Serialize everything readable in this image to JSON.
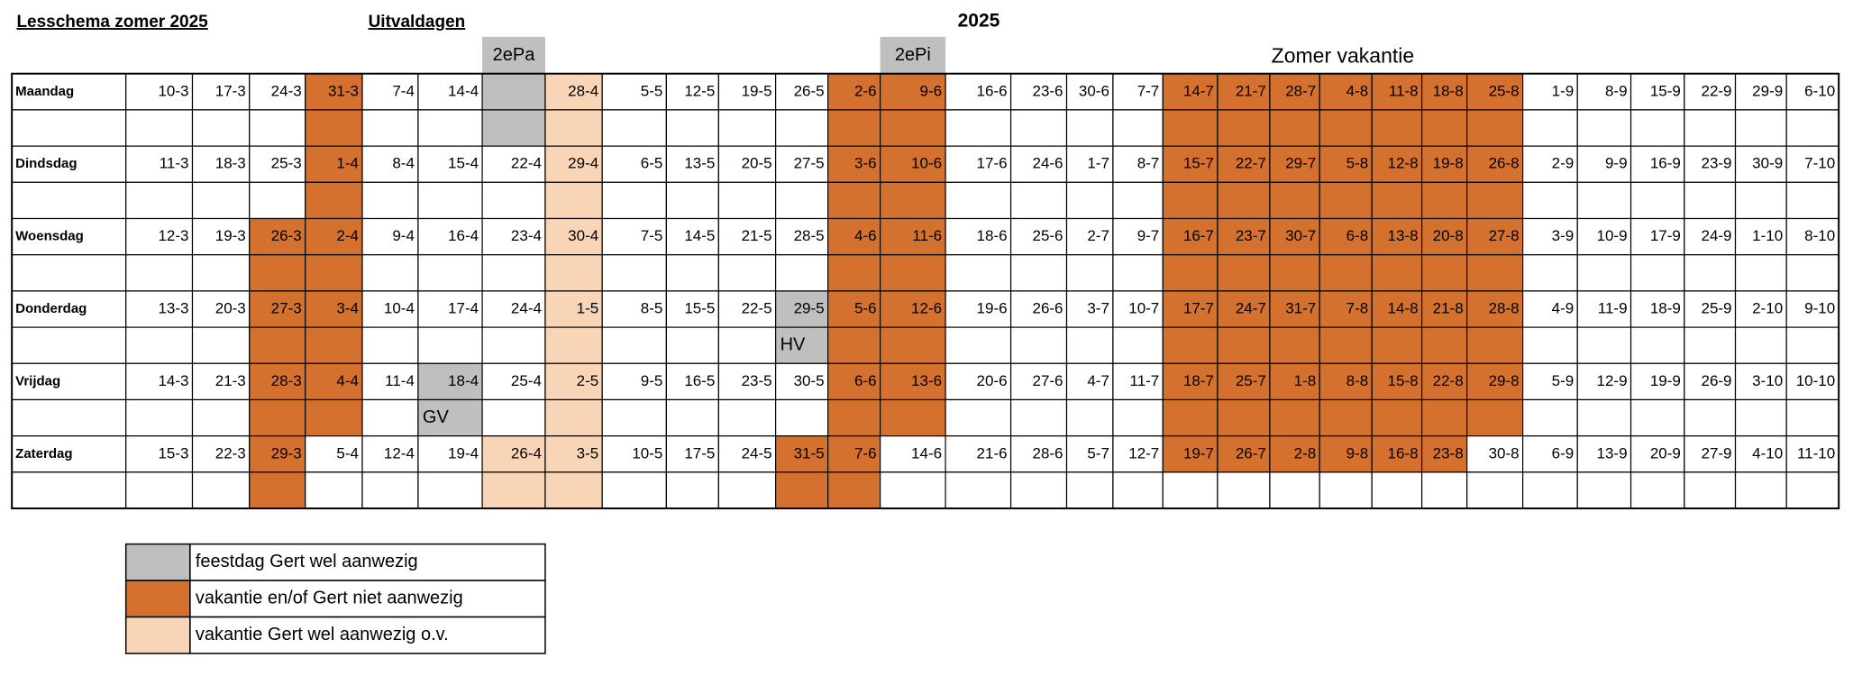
{
  "header": {
    "title": "Lesschema zomer 2025",
    "subtitle": "Uitvaldagen",
    "year": "2025",
    "zomer": "Zomer vakantie",
    "column_notes": [
      {
        "col": 6,
        "text": "2ePa",
        "code": "g"
      },
      {
        "col": 13,
        "text": "2ePi",
        "code": "g"
      }
    ]
  },
  "legend": [
    {
      "code": "g",
      "color": "#bfbfbf",
      "label": "feestdag Gert wel aanwezig"
    },
    {
      "code": "o",
      "color": "#d5712f",
      "label": "vakantie en/of Gert niet aanwezig"
    },
    {
      "code": "p",
      "color": "#f8d5b6",
      "label": "vakantie  Gert wel aanwezig o.v."
    }
  ],
  "days": [
    {
      "name": "Maandag",
      "dates": [
        "10-3",
        "17-3",
        "24-3",
        "31-3",
        "7-4",
        "14-4",
        null,
        "28-4",
        "5-5",
        "12-5",
        "19-5",
        "26-5",
        "2-6",
        "9-6",
        "16-6",
        "23-6",
        "30-6",
        "7-7",
        "14-7",
        "21-7",
        "28-7",
        "4-8",
        "11-8",
        "18-8",
        "25-8",
        "1-9",
        "8-9",
        "15-9",
        "22-9",
        "29-9",
        "6-10"
      ],
      "fill": "...o..gp....oo....ooooooo......",
      "sub_fill": "...o..gp....oo....ooooooo......",
      "notes": []
    },
    {
      "name": "Dindsdag",
      "dates": [
        "11-3",
        "18-3",
        "25-3",
        "1-4",
        "8-4",
        "15-4",
        "22-4",
        "29-4",
        "6-5",
        "13-5",
        "20-5",
        "27-5",
        "3-6",
        "10-6",
        "17-6",
        "24-6",
        "1-7",
        "8-7",
        "15-7",
        "22-7",
        "29-7",
        "5-8",
        "12-8",
        "19-8",
        "26-8",
        "2-9",
        "9-9",
        "16-9",
        "23-9",
        "30-9",
        "7-10"
      ],
      "fill": "...o...p....oo....ooooooo......",
      "sub_fill": "...o...p....oo....ooooooo......",
      "notes": []
    },
    {
      "name": "Woensdag",
      "dates": [
        "12-3",
        "19-3",
        "26-3",
        "2-4",
        "9-4",
        "16-4",
        "23-4",
        "30-4",
        "7-5",
        "14-5",
        "21-5",
        "28-5",
        "4-6",
        "11-6",
        "18-6",
        "25-6",
        "2-7",
        "9-7",
        "16-7",
        "23-7",
        "30-7",
        "6-8",
        "13-8",
        "20-8",
        "27-8",
        "3-9",
        "10-9",
        "17-9",
        "24-9",
        "1-10",
        "8-10"
      ],
      "fill": "..oo...p....oo....ooooooo......",
      "sub_fill": "..oo...p....oo....ooooooo......",
      "notes": []
    },
    {
      "name": "Donderdag",
      "dates": [
        "13-3",
        "20-3",
        "27-3",
        "3-4",
        "10-4",
        "17-4",
        "24-4",
        "1-5",
        "8-5",
        "15-5",
        "22-5",
        "29-5",
        "5-6",
        "12-6",
        "19-6",
        "26-6",
        "3-7",
        "10-7",
        "17-7",
        "24-7",
        "31-7",
        "7-8",
        "14-8",
        "21-8",
        "28-8",
        "4-9",
        "11-9",
        "18-9",
        "25-9",
        "2-10",
        "9-10"
      ],
      "fill": "..oo...p...goo....ooooooo......",
      "sub_fill": "..oo...p...goo....ooooooo......",
      "notes": [
        {
          "col": 11,
          "text": "HV"
        }
      ]
    },
    {
      "name": "Vrijdag",
      "dates": [
        "14-3",
        "21-3",
        "28-3",
        "4-4",
        "11-4",
        "18-4",
        "25-4",
        "2-5",
        "9-5",
        "16-5",
        "23-5",
        "30-5",
        "6-6",
        "13-6",
        "20-6",
        "27-6",
        "4-7",
        "11-7",
        "18-7",
        "25-7",
        "1-8",
        "8-8",
        "15-8",
        "22-8",
        "29-8",
        "5-9",
        "12-9",
        "19-9",
        "26-9",
        "3-10",
        "10-10"
      ],
      "fill": "..oo.g.p....oo....ooooooo......",
      "sub_fill": "..oo.g.p....oo....ooooooo......",
      "notes": [
        {
          "col": 5,
          "text": "GV"
        }
      ]
    },
    {
      "name": "Zaterdag",
      "dates": [
        "15-3",
        "22-3",
        "29-3",
        "5-4",
        "12-4",
        "19-4",
        "26-4",
        "3-5",
        "10-5",
        "17-5",
        "24-5",
        "31-5",
        "7-6",
        "14-6",
        "21-6",
        "28-6",
        "5-7",
        "12-7",
        "19-7",
        "26-7",
        "2-8",
        "9-8",
        "16-8",
        "23-8",
        "30-8",
        "6-9",
        "13-9",
        "20-9",
        "27-9",
        "4-10",
        "11-10"
      ],
      "fill": "..o...pp...oo.....oooooo.......",
      "sub_fill": "..o...pp...oo..................",
      "notes": []
    }
  ]
}
